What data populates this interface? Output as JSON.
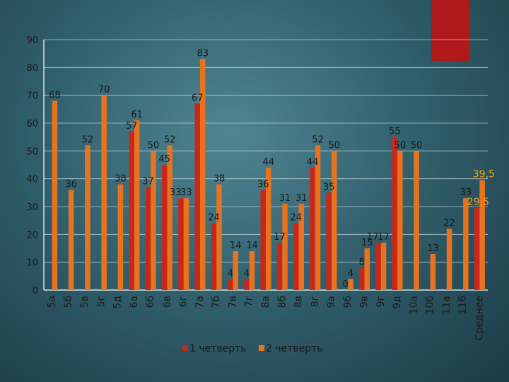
{
  "colors": {
    "q1": "#c8281a",
    "q2": "#e8721e",
    "text": "#1a1a1a",
    "average_text": "#e8a31e",
    "axis": "#ffffff",
    "grid": "#d8e4e6"
  },
  "chart_data": {
    "type": "bar",
    "title": "",
    "xlabel": "",
    "ylabel": "",
    "ylim": [
      0,
      90
    ],
    "yticks": [
      0,
      10,
      20,
      30,
      40,
      50,
      60,
      70,
      80,
      90
    ],
    "grid": true,
    "legend_position": "bottom",
    "categories": [
      "5а",
      "5б",
      "5в",
      "5г",
      "5д",
      "6а",
      "6б",
      "6в",
      "6г",
      "7а",
      "7б",
      "7в",
      "7г",
      "8а",
      "8б",
      "8в",
      "8г",
      "9а",
      "9б",
      "9в",
      "9г",
      "9д",
      "10а",
      "10б",
      "11а",
      "11б",
      "Среднее"
    ],
    "series": [
      {
        "name": "1 четверть",
        "values": [
          null,
          null,
          null,
          null,
          null,
          57,
          37,
          45,
          33,
          67,
          24,
          4,
          4,
          36,
          17,
          24,
          44,
          35,
          0,
          8,
          17,
          55,
          null,
          null,
          null,
          null,
          29.5
        ]
      },
      {
        "name": "2 четверть",
        "values": [
          68,
          36,
          52,
          70,
          38,
          61,
          50,
          52,
          33,
          83,
          38,
          14,
          14,
          44,
          31,
          31,
          52,
          50,
          4,
          15,
          17,
          50,
          50,
          13,
          22,
          33,
          39.5
        ]
      }
    ]
  }
}
